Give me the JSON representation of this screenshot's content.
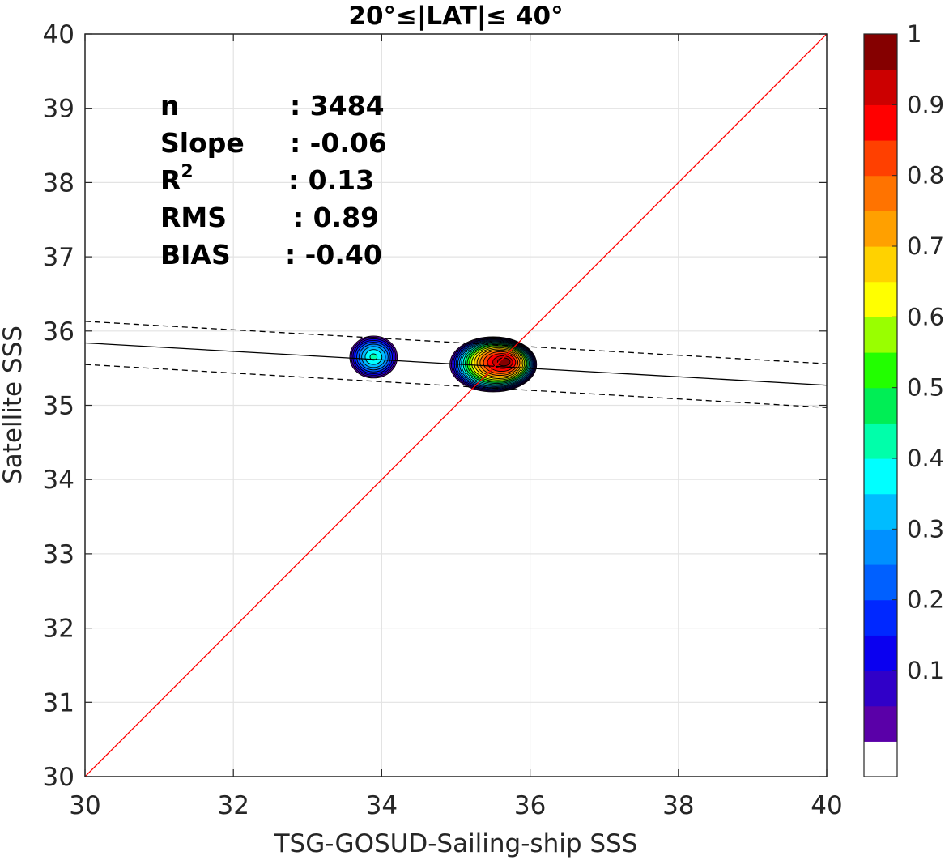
{
  "chart_data": {
    "type": "contour",
    "title": "20°≤|LAT|≤ 40°",
    "xlabel": "TSG-GOSUD-Sailing-ship SSS",
    "ylabel": "Satellite SSS",
    "xlim": [
      30,
      40
    ],
    "ylim": [
      30,
      40
    ],
    "xticks": [
      "30",
      "32",
      "34",
      "36",
      "38",
      "40"
    ],
    "yticks": [
      "30",
      "31",
      "32",
      "33",
      "34",
      "35",
      "36",
      "37",
      "38",
      "39",
      "40"
    ],
    "grid": true,
    "stats": [
      {
        "name": "n",
        "value": ": 3484"
      },
      {
        "name": "Slope",
        "value": ": -0.06"
      },
      {
        "name": "R",
        "sup": "2",
        "value": ": 0.13"
      },
      {
        "name": "RMS",
        "value": ": 0.89"
      },
      {
        "name": "BIAS",
        "value": ": -0.40"
      }
    ],
    "lines": {
      "one_to_one": {
        "x": [
          30,
          40
        ],
        "y": [
          30,
          40
        ],
        "color": "#ff0000"
      },
      "fit": {
        "x": [
          30,
          40
        ],
        "y": [
          35.84,
          35.27
        ],
        "color": "#000000"
      },
      "fit_upper": {
        "x": [
          30,
          40
        ],
        "y": [
          36.13,
          35.56
        ],
        "color": "#000000",
        "style": "dashed"
      },
      "fit_lower": {
        "x": [
          30,
          40
        ],
        "y": [
          35.55,
          34.97
        ],
        "color": "#000000",
        "style": "dashed"
      }
    },
    "density_blobs": [
      {
        "cx": 33.89,
        "cy": 35.65,
        "rx": 0.34,
        "ry": 0.3,
        "peak": 0.45
      },
      {
        "cx": 35.5,
        "cy": 35.55,
        "rx": 0.6,
        "ry": 0.38,
        "peak": 1.0,
        "peak_offset": [
          0.17,
          0.04
        ]
      }
    ],
    "colorbar": {
      "levels": [
        0,
        0.05,
        0.1,
        0.15,
        0.2,
        0.25,
        0.3,
        0.35,
        0.4,
        0.45,
        0.5,
        0.55,
        0.6,
        0.65,
        0.7,
        0.75,
        0.8,
        0.85,
        0.9,
        0.95,
        1.0
      ],
      "colors": [
        "#ffffff",
        "#5a00a8",
        "#3000c8",
        "#0a00f0",
        "#0028ff",
        "#0060ff",
        "#0090ff",
        "#00bcff",
        "#00ffff",
        "#00ffaa",
        "#00ee55",
        "#22ff00",
        "#99ff00",
        "#ffff00",
        "#ffd200",
        "#ffa000",
        "#ff7300",
        "#ff4000",
        "#ff0000",
        "#cc0000",
        "#850000"
      ],
      "ticks": [
        "0.1",
        "0.2",
        "0.3",
        "0.4",
        "0.5",
        "0.6",
        "0.7",
        "0.8",
        "0.9",
        "1"
      ]
    }
  }
}
